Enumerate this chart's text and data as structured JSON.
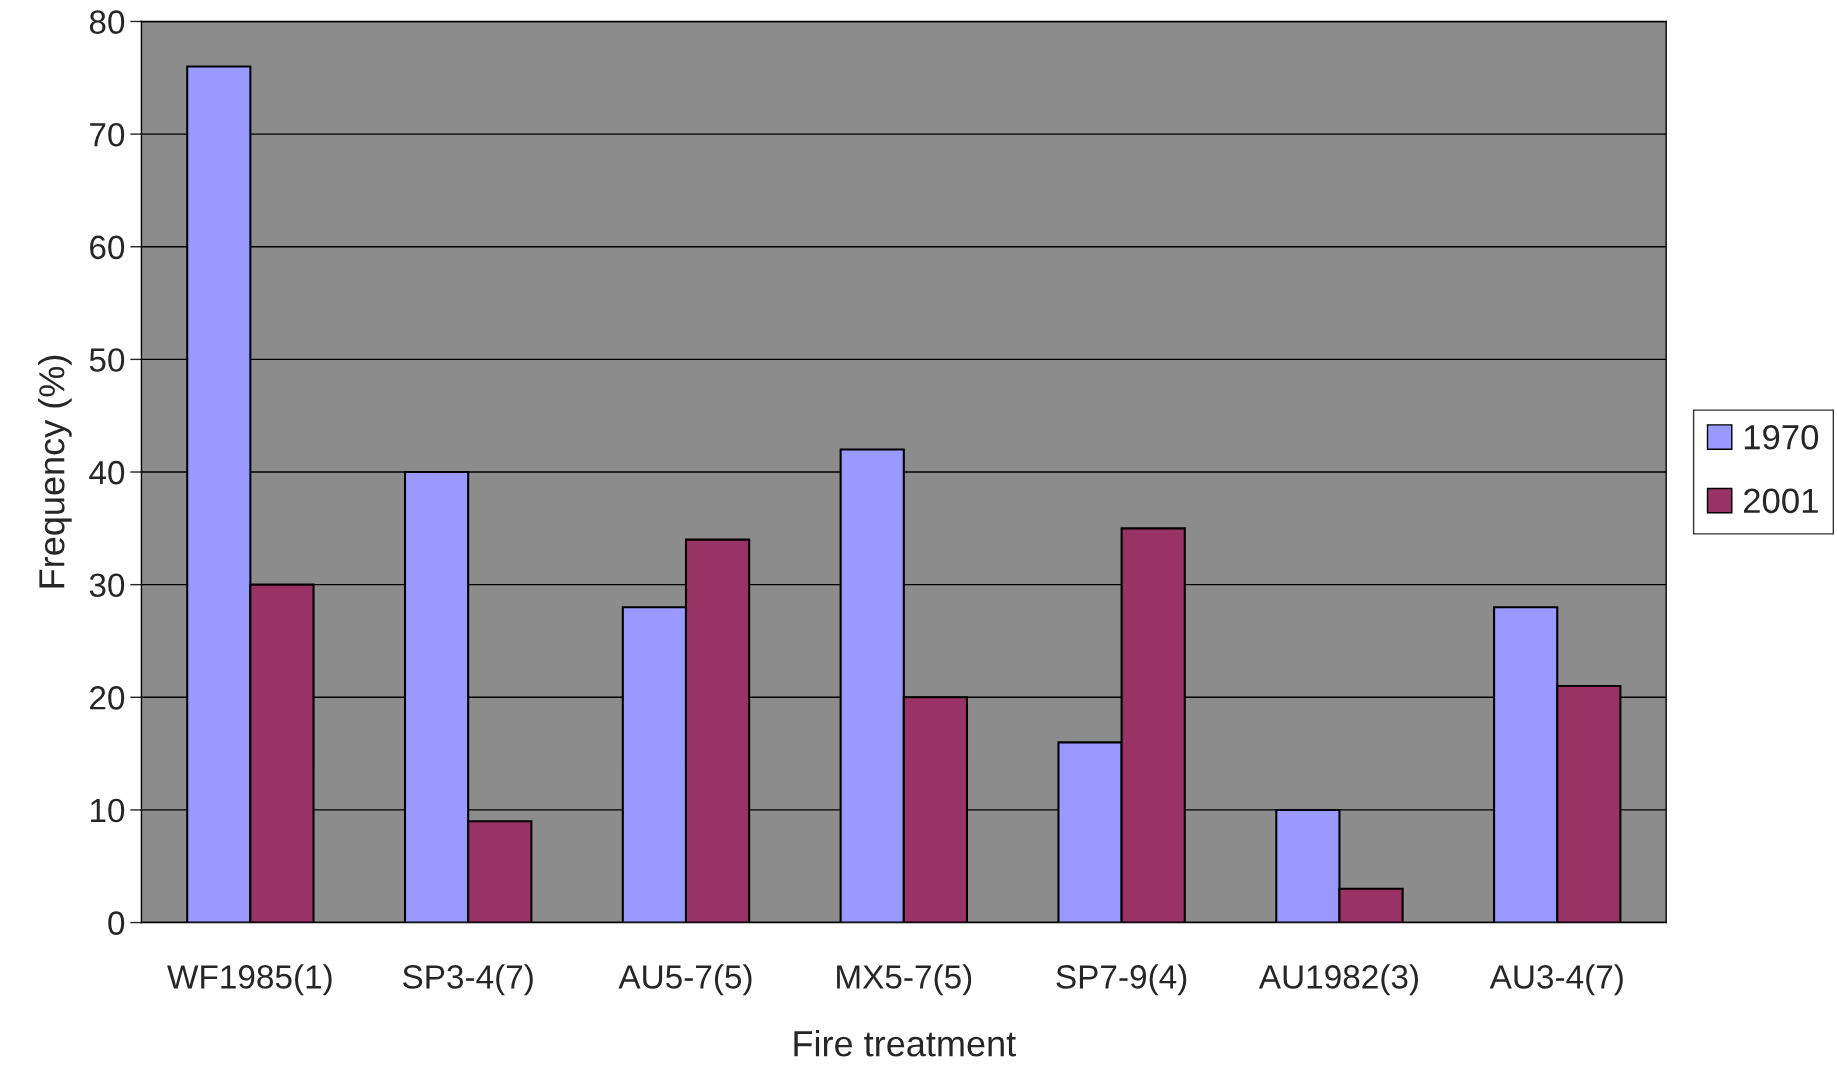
{
  "chart_data": {
    "type": "bar",
    "xlabel": "Fire treatment",
    "ylabel": "Frequency (%)",
    "categories": [
      "WF1985(1)",
      "SP3-4(7)",
      "AU5-7(5)",
      "MX5-7(5)",
      "SP7-9(4)",
      "AU1982(3)",
      "AU3-4(7)"
    ],
    "series": [
      {
        "name": "1970",
        "color": "#9999ff",
        "values": [
          76,
          40,
          28,
          42,
          16,
          10,
          28
        ]
      },
      {
        "name": "2001",
        "color": "#993366",
        "values": [
          30,
          9,
          34,
          20,
          35,
          3,
          21
        ]
      }
    ],
    "ylim": [
      0,
      80
    ],
    "yticks": [
      0,
      10,
      20,
      30,
      40,
      50,
      60,
      70,
      80
    ],
    "grid": "y",
    "legend": "right"
  }
}
